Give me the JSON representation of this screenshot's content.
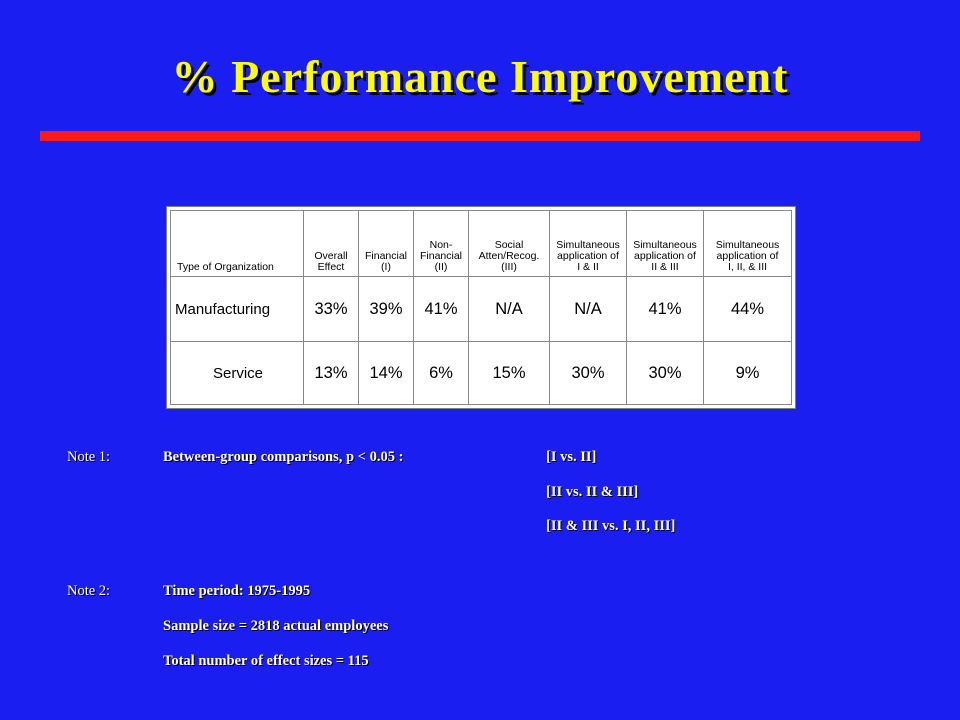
{
  "title": "% Performance Improvement",
  "table": {
    "headers": [
      [
        "Type of Organization"
      ],
      [
        "Overall",
        "Effect"
      ],
      [
        "Financial",
        "(I)"
      ],
      [
        "Non-",
        "Financial",
        "(II)"
      ],
      [
        "Social",
        "Atten/Recog.",
        "(III)"
      ],
      [
        "Simultaneous",
        "application of",
        "I & II"
      ],
      [
        "Simultaneous",
        "application of",
        "II & III"
      ],
      [
        "Simultaneous",
        "application of",
        "I, II, & III"
      ]
    ],
    "rows": [
      {
        "label": "Manufacturing",
        "values": [
          "33%",
          "39%",
          "41%",
          "N/A",
          "N/A",
          "41%",
          "44%"
        ]
      },
      {
        "label": "Service",
        "values": [
          "13%",
          "14%",
          "6%",
          "15%",
          "30%",
          "30%",
          "9%"
        ]
      }
    ]
  },
  "note1": {
    "label": "Note 1:",
    "text": "Between-group comparisons, p < 0.05 :",
    "comparisons": [
      "[I vs. II]",
      "[II vs. II & III]",
      "[II & III vs. I, II, III]"
    ]
  },
  "note2": {
    "label": "Note 2:",
    "lines": [
      "Time period: 1975-1995",
      "Sample size = 2818 actual employees",
      "Total number of effect sizes = 115"
    ]
  },
  "colors": {
    "background": "#1a1ef0",
    "title": "#ffff00",
    "rule": "#ff1a1a",
    "notes_text": "#ffffff"
  }
}
